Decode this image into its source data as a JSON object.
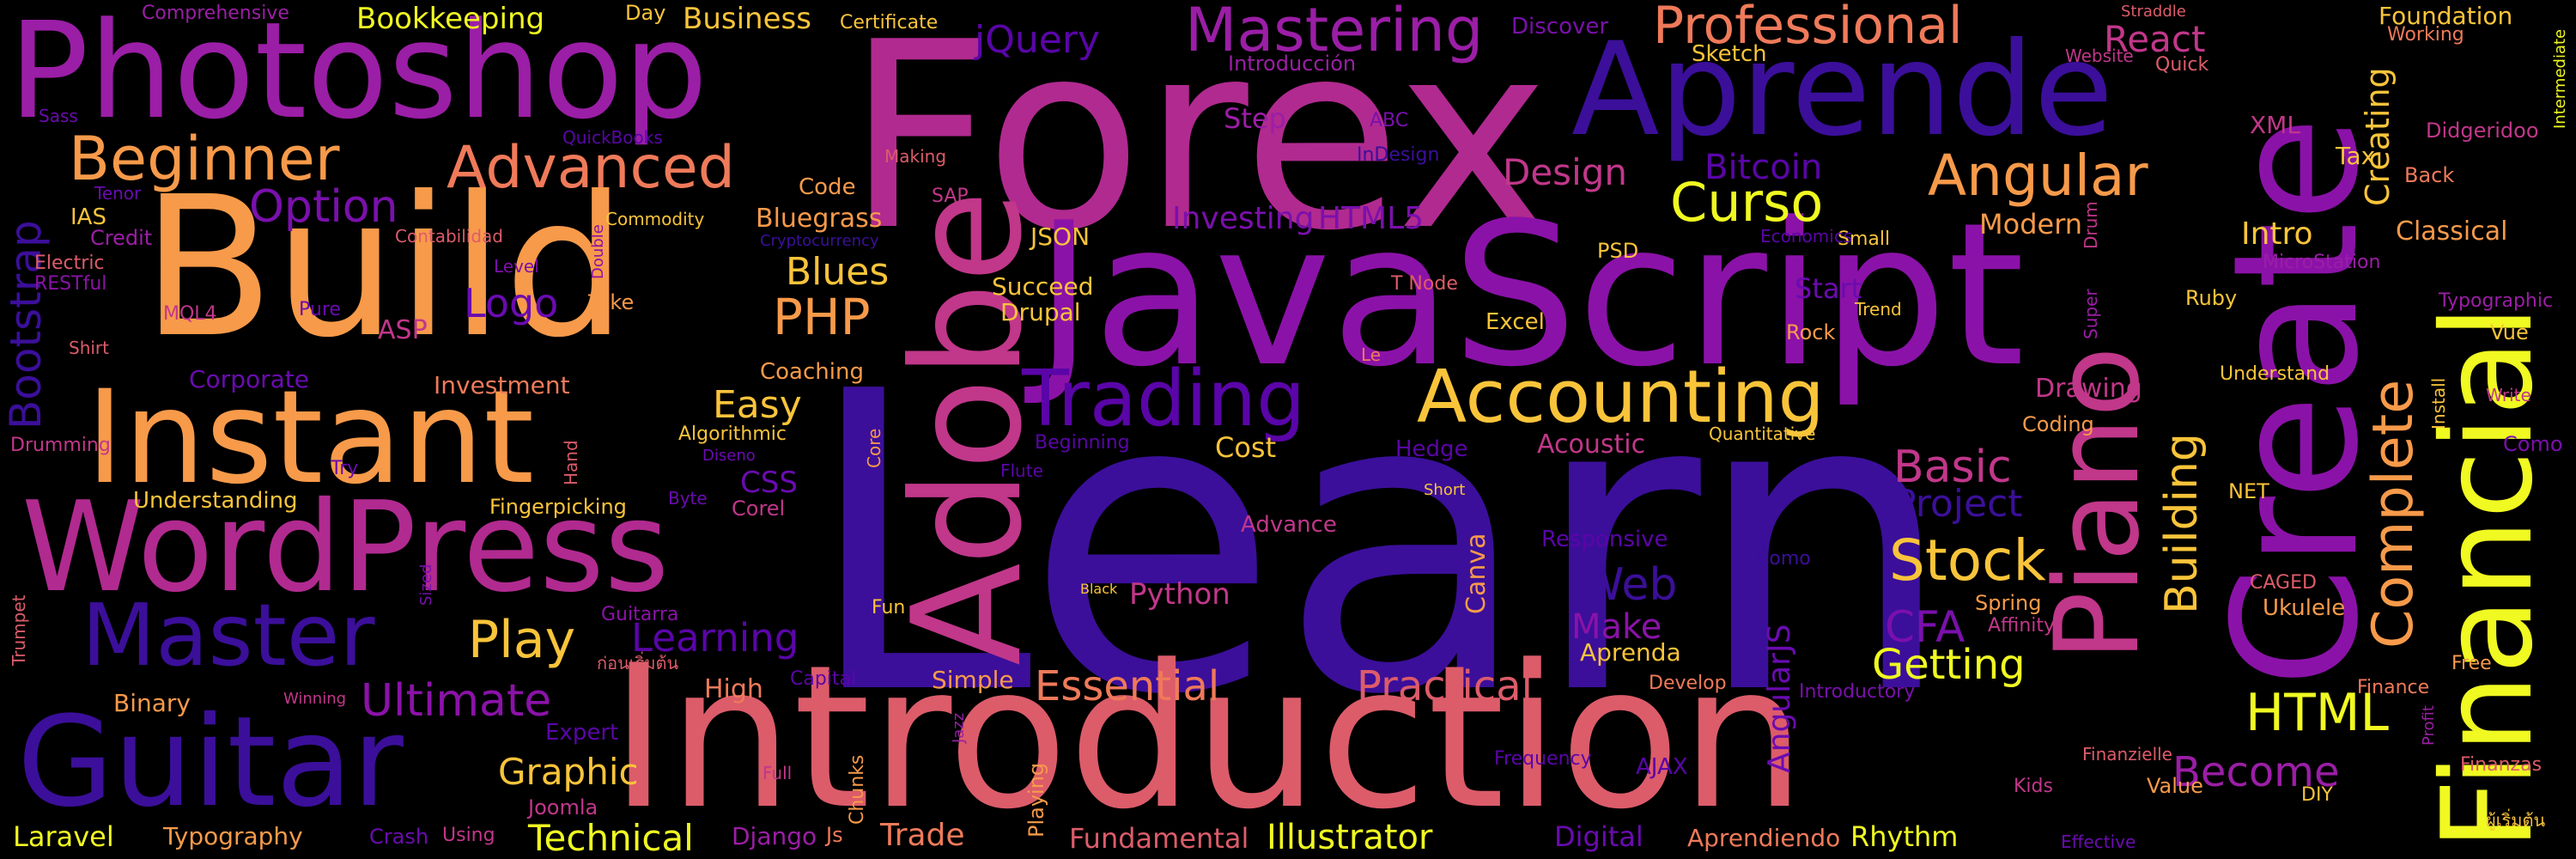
{
  "palette": {
    "background": "#000000",
    "deep_indigo": "#3b0f9a",
    "violet": "#6a0bb0",
    "purple": "#9b1ea6",
    "magenta": "#c1378a",
    "rose": "#dc5c6a",
    "salmon": "#ef7a5a",
    "orange": "#f79a4a",
    "amber": "#f9c43a",
    "yellow": "#f0f921"
  },
  "words": [
    {
      "text": "Learn",
      "color": "#3b0f9a"
    },
    {
      "text": "Forex",
      "color": "#b12a90"
    },
    {
      "text": "JavaScript",
      "color": "#8b12a8"
    },
    {
      "text": "Build",
      "color": "#f79a4a"
    },
    {
      "text": "Photoshop",
      "color": "#9b1ea6"
    },
    {
      "text": "Introduction",
      "color": "#dc5c6a"
    },
    {
      "text": "Create",
      "color": "#8b12a8"
    },
    {
      "text": "Aprende",
      "color": "#3b0f9a"
    },
    {
      "text": "Instant",
      "color": "#f79a4a"
    },
    {
      "text": "WordPress",
      "color": "#b12a90"
    },
    {
      "text": "Guitar",
      "color": "#3b0f9a"
    },
    {
      "text": "Adobe",
      "color": "#c1378a"
    },
    {
      "text": "Financial",
      "color": "#f0f921"
    },
    {
      "text": "Piano",
      "color": "#c1378a"
    },
    {
      "text": "Master",
      "color": "#3b0f9a"
    },
    {
      "text": "Trading",
      "color": "#5a05a8"
    },
    {
      "text": "Accounting",
      "color": "#f9c43a"
    },
    {
      "text": "Beginner",
      "color": "#f79a4a"
    },
    {
      "text": "Advanced",
      "color": "#ef7a5a"
    },
    {
      "text": "Mastering",
      "color": "#9b1ea6"
    },
    {
      "text": "Professional",
      "color": "#ef7a5a"
    },
    {
      "text": "Angular",
      "color": "#f79a4a"
    },
    {
      "text": "Curso",
      "color": "#f0f921"
    },
    {
      "text": "Complete",
      "color": "#f79a4a"
    },
    {
      "text": "Stock",
      "color": "#f9c43a"
    },
    {
      "text": "Option",
      "color": "#7a10ac"
    },
    {
      "text": "Ultimate",
      "color": "#8b12a8"
    },
    {
      "text": "Essential",
      "color": "#ef7a5a"
    },
    {
      "text": "Practical",
      "color": "#dc5c6a"
    },
    {
      "text": "Technical",
      "color": "#f0f921"
    },
    {
      "text": "Bootstrap",
      "color": "#3b0f9a"
    },
    {
      "text": "Play",
      "color": "#f9c43a"
    },
    {
      "text": "PHP",
      "color": "#f79a4a"
    },
    {
      "text": "HTML",
      "color": "#f0f921"
    },
    {
      "text": "Logo",
      "color": "#6a0bb0"
    },
    {
      "text": "Learning",
      "color": "#5a05a8"
    },
    {
      "text": "Graphic",
      "color": "#f9c43a"
    },
    {
      "text": "Become",
      "color": "#9b1ea6"
    },
    {
      "text": "Basic",
      "color": "#c1378a"
    },
    {
      "text": "Project",
      "color": "#3b0f9a"
    },
    {
      "text": "Web",
      "color": "#3b0f9a"
    },
    {
      "text": "Make",
      "color": "#8b12a8"
    },
    {
      "text": "Getting",
      "color": "#f0f921"
    },
    {
      "text": "Building",
      "color": "#f9c43a"
    },
    {
      "text": "Blues",
      "color": "#f9c43a"
    },
    {
      "text": "Easy",
      "color": "#f9c43a"
    },
    {
      "text": "CFA",
      "color": "#7a10ac"
    },
    {
      "text": "Illustrator",
      "color": "#f0f921"
    },
    {
      "text": "Design",
      "color": "#c1378a"
    },
    {
      "text": "Bitcoin",
      "color": "#5a05a8"
    },
    {
      "text": "React",
      "color": "#c1378a"
    },
    {
      "text": "jQuery",
      "color": "#5a05a8"
    },
    {
      "text": "Business",
      "color": "#f9c43a"
    },
    {
      "text": "Bookkeeping",
      "color": "#f0f921"
    },
    {
      "text": "Comprehensive",
      "color": "#9b1ea6"
    },
    {
      "text": "Day",
      "color": "#f9c43a"
    },
    {
      "text": "Certificate",
      "color": "#f9c43a"
    },
    {
      "text": "Discover",
      "color": "#7a10ac"
    },
    {
      "text": "Foundation",
      "color": "#f9c43a"
    },
    {
      "text": "Working",
      "color": "#ef7a5a"
    },
    {
      "text": "Intermediate",
      "color": "#f0f921"
    },
    {
      "text": "Straddle",
      "color": "#dc5c6a"
    },
    {
      "text": "Quick",
      "color": "#dc5c6a"
    },
    {
      "text": "Website",
      "color": "#c1378a"
    },
    {
      "text": "Sketch",
      "color": "#f9c43a"
    },
    {
      "text": "Introducción",
      "color": "#9b1ea6"
    },
    {
      "text": "Step",
      "color": "#9b1ea6"
    },
    {
      "text": "ABC",
      "color": "#7a10ac"
    },
    {
      "text": "InDesign",
      "color": "#3b0f9a"
    },
    {
      "text": "XML",
      "color": "#c1378a"
    },
    {
      "text": "Tax",
      "color": "#f9c43a"
    },
    {
      "text": "Didgeridoo",
      "color": "#c1378a"
    },
    {
      "text": "Back",
      "color": "#ef7a5a"
    },
    {
      "text": "Creating",
      "color": "#f9c43a"
    },
    {
      "text": "Classical",
      "color": "#f79a4a"
    },
    {
      "text": "Modern",
      "color": "#f79a4a"
    },
    {
      "text": "Intro",
      "color": "#f9c43a"
    },
    {
      "text": "Drum",
      "color": "#c1378a"
    },
    {
      "text": "MicroStation",
      "color": "#9b1ea6"
    },
    {
      "text": "Typographic",
      "color": "#9b1ea6"
    },
    {
      "text": "Vue",
      "color": "#f9c43a"
    },
    {
      "text": "Install",
      "color": "#f9c43a"
    },
    {
      "text": "Write",
      "color": "#c1378a"
    },
    {
      "text": "Understand",
      "color": "#f9c43a"
    },
    {
      "text": "Como",
      "color": "#7a10ac"
    },
    {
      "text": "Sass",
      "color": "#6a0bb0"
    },
    {
      "text": "Tenor",
      "color": "#6a0bb0"
    },
    {
      "text": "IAS",
      "color": "#f9c43a"
    },
    {
      "text": "Credit",
      "color": "#9b1ea6"
    },
    {
      "text": "Electric",
      "color": "#dc5c6a"
    },
    {
      "text": "RESTful",
      "color": "#8b12a8"
    },
    {
      "text": "MQL4",
      "color": "#c1378a"
    },
    {
      "text": "Shirt",
      "color": "#dc5c6a"
    },
    {
      "text": "Drumming",
      "color": "#c1378a"
    },
    {
      "text": "Pure",
      "color": "#6a0bb0"
    },
    {
      "text": "ASP",
      "color": "#c1378a"
    },
    {
      "text": "Take",
      "color": "#f79a4a"
    },
    {
      "text": "QuickBooks",
      "color": "#5a05a8"
    },
    {
      "text": "Contabilidad",
      "color": "#dc5c6a"
    },
    {
      "text": "Commodity",
      "color": "#f9c43a"
    },
    {
      "text": "Level",
      "color": "#7a10ac"
    },
    {
      "text": "Double",
      "color": "#8b12a8"
    },
    {
      "text": "Corporate",
      "color": "#6a0bb0"
    },
    {
      "text": "Investment",
      "color": "#ef7a5a"
    },
    {
      "text": "Understanding",
      "color": "#f9c43a"
    },
    {
      "text": "Try",
      "color": "#6a0bb0"
    },
    {
      "text": "Hand",
      "color": "#dc5c6a"
    },
    {
      "text": "Fingerpicking",
      "color": "#f9c43a"
    },
    {
      "text": "Algorithmic",
      "color": "#f9c43a"
    },
    {
      "text": "Diseno",
      "color": "#6a0bb0"
    },
    {
      "text": "Byte",
      "color": "#6a0bb0"
    },
    {
      "text": "CSS",
      "color": "#6a0bb0"
    },
    {
      "text": "Corel",
      "color": "#c1378a"
    },
    {
      "text": "Sized",
      "color": "#7a10ac"
    },
    {
      "text": "Guitarra",
      "color": "#8b12a8"
    },
    {
      "text": "Trumpet",
      "color": "#dc5c6a"
    },
    {
      "text": "Binary",
      "color": "#f79a4a"
    },
    {
      "text": "Winning",
      "color": "#c1378a"
    },
    {
      "text": "Expert",
      "color": "#5a05a8"
    },
    {
      "text": "High",
      "color": "#ef7a5a"
    },
    {
      "text": "Capital",
      "color": "#5a05a8"
    },
    {
      "text": "Simple",
      "color": "#f79a4a"
    },
    {
      "text": "Jazz",
      "color": "#9b1ea6"
    },
    {
      "text": "Chunks",
      "color": "#f79a4a"
    },
    {
      "text": "Full",
      "color": "#c1378a"
    },
    {
      "text": "Joomla",
      "color": "#c1378a"
    },
    {
      "text": "Laravel",
      "color": "#f0f921"
    },
    {
      "text": "Typography",
      "color": "#f79a4a"
    },
    {
      "text": "Crash",
      "color": "#6a0bb0"
    },
    {
      "text": "Using",
      "color": "#c1378a"
    },
    {
      "text": "Django",
      "color": "#9b1ea6"
    },
    {
      "text": "Js",
      "color": "#ef7a5a"
    },
    {
      "text": "Trade",
      "color": "#ef7a5a"
    },
    {
      "text": "Playing",
      "color": "#f79a4a"
    },
    {
      "text": "Fundamental",
      "color": "#dc5c6a"
    },
    {
      "text": "Digital",
      "color": "#6a0bb0"
    },
    {
      "text": "Aprendiendo",
      "color": "#ef7a5a"
    },
    {
      "text": "Rhythm",
      "color": "#f0f921"
    },
    {
      "text": "Effective",
      "color": "#6a0bb0"
    },
    {
      "text": "Kids",
      "color": "#c1378a"
    },
    {
      "text": "DIY",
      "color": "#f9c43a"
    },
    {
      "text": "Value",
      "color": "#f79a4a"
    },
    {
      "text": "Finanzas",
      "color": "#dc5c6a"
    },
    {
      "text": "Finanzielle",
      "color": "#dc5c6a"
    },
    {
      "text": "Profit",
      "color": "#9b1ea6"
    },
    {
      "text": "Free",
      "color": "#f79a4a"
    },
    {
      "text": "Finance",
      "color": "#ef7a5a"
    },
    {
      "text": "Ukulele",
      "color": "#f79a4a"
    },
    {
      "text": "Affinity",
      "color": "#c1378a"
    },
    {
      "text": "Spring",
      "color": "#f79a4a"
    },
    {
      "text": "CAGED",
      "color": "#dc5c6a"
    },
    {
      "text": "NET",
      "color": "#f9c43a"
    },
    {
      "text": "Ruby",
      "color": "#f9c43a"
    },
    {
      "text": "Super",
      "color": "#9b1ea6"
    },
    {
      "text": "Trend",
      "color": "#f9c43a"
    },
    {
      "text": "Rock",
      "color": "#f79a4a"
    },
    {
      "text": "Start",
      "color": "#6a0bb0"
    },
    {
      "text": "Small",
      "color": "#f9c43a"
    },
    {
      "text": "Economics",
      "color": "#5a05a8"
    },
    {
      "text": "T Node",
      "color": "#dc5c6a"
    },
    {
      "text": "PSD",
      "color": "#f9c43a"
    },
    {
      "text": "Excel",
      "color": "#f9c43a"
    },
    {
      "text": "Le",
      "color": "#ef7a5a"
    },
    {
      "text": "Hedge",
      "color": "#5a05a8"
    },
    {
      "text": "Acoustic",
      "color": "#c1378a"
    },
    {
      "text": "Quantitative",
      "color": "#f9c43a"
    },
    {
      "text": "Coding",
      "color": "#f79a4a"
    },
    {
      "text": "Drawing",
      "color": "#c1378a"
    },
    {
      "text": "Cost",
      "color": "#f9c43a"
    },
    {
      "text": "Beginning",
      "color": "#5a05a8"
    },
    {
      "text": "Flute",
      "color": "#5a05a8"
    },
    {
      "text": "Core",
      "color": "#f79a4a"
    },
    {
      "text": "Coaching",
      "color": "#f79a4a"
    },
    {
      "text": "Succeed",
      "color": "#f9c43a"
    },
    {
      "text": "Drupal",
      "color": "#f9c43a"
    },
    {
      "text": "JSON",
      "color": "#f9c43a"
    },
    {
      "text": "SAP",
      "color": "#c1378a"
    },
    {
      "text": "Code",
      "color": "#f79a4a"
    },
    {
      "text": "Making",
      "color": "#dc5c6a"
    },
    {
      "text": "Bluegrass",
      "color": "#f79a4a"
    },
    {
      "text": "Cryptocurrency",
      "color": "#3b0f9a"
    },
    {
      "text": "Investing",
      "color": "#7a10ac"
    },
    {
      "text": "HTML5",
      "color": "#7a10ac"
    },
    {
      "text": "Short",
      "color": "#f9c43a"
    },
    {
      "text": "Advance",
      "color": "#c1378a"
    },
    {
      "text": "Responsive",
      "color": "#5a05a8"
    },
    {
      "text": "Como",
      "color": "#3b0f9a"
    },
    {
      "text": "AngularJS",
      "color": "#6a0bb0"
    },
    {
      "text": "Aprenda",
      "color": "#f9c43a"
    },
    {
      "text": "Python",
      "color": "#c1378a"
    },
    {
      "text": "Black",
      "color": "#f9c43a"
    },
    {
      "text": "Fun",
      "color": "#f9c43a"
    },
    {
      "text": "Canva",
      "color": "#f79a4a"
    },
    {
      "text": "Develop",
      "color": "#ef7a5a"
    },
    {
      "text": "Introductory",
      "color": "#7a10ac"
    },
    {
      "text": "Frequency",
      "color": "#5a05a8"
    },
    {
      "text": "AJAX",
      "color": "#5a05a8"
    },
    {
      "text": "ก่อนเริ่มต้น",
      "color": "#dc5c6a"
    },
    {
      "text": "ผู้เริ่มต้น",
      "color": "#f9c43a"
    }
  ]
}
